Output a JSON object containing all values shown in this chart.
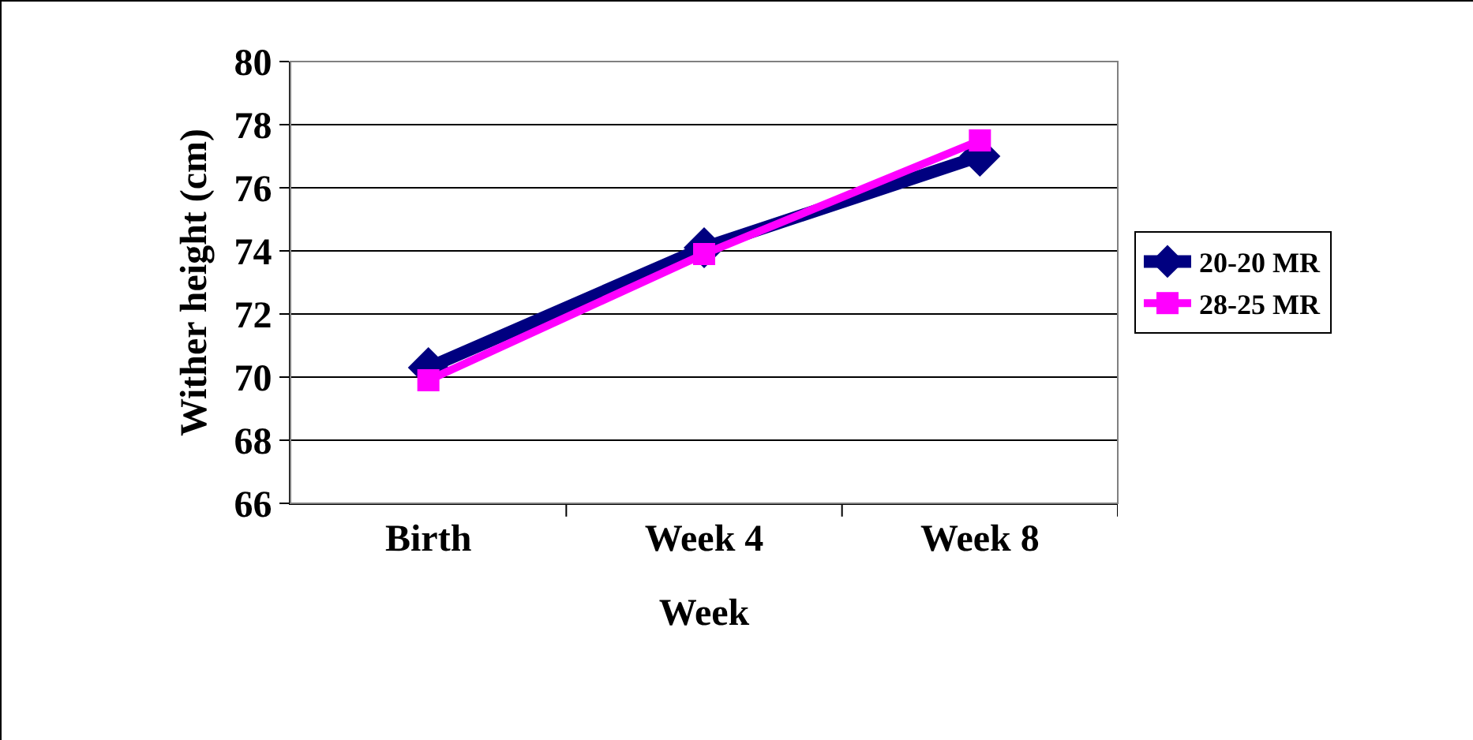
{
  "chart_data": {
    "type": "line",
    "xlabel": "Week",
    "ylabel": "Wither height (cm)",
    "categories": [
      "Birth",
      "Week 4",
      "Week 8"
    ],
    "series": [
      {
        "name": "20-20 MR",
        "color": "#000080",
        "marker": "diamond",
        "values": [
          70.3,
          74.1,
          77.0
        ]
      },
      {
        "name": "28-25 MR",
        "color": "#ff00ff",
        "marker": "square",
        "values": [
          69.9,
          73.9,
          77.5
        ]
      }
    ],
    "ylim": [
      66,
      80
    ],
    "yticks": [
      66,
      68,
      70,
      72,
      74,
      76,
      78,
      80
    ],
    "grid": "y",
    "legend": "right",
    "line_style": "solid"
  }
}
